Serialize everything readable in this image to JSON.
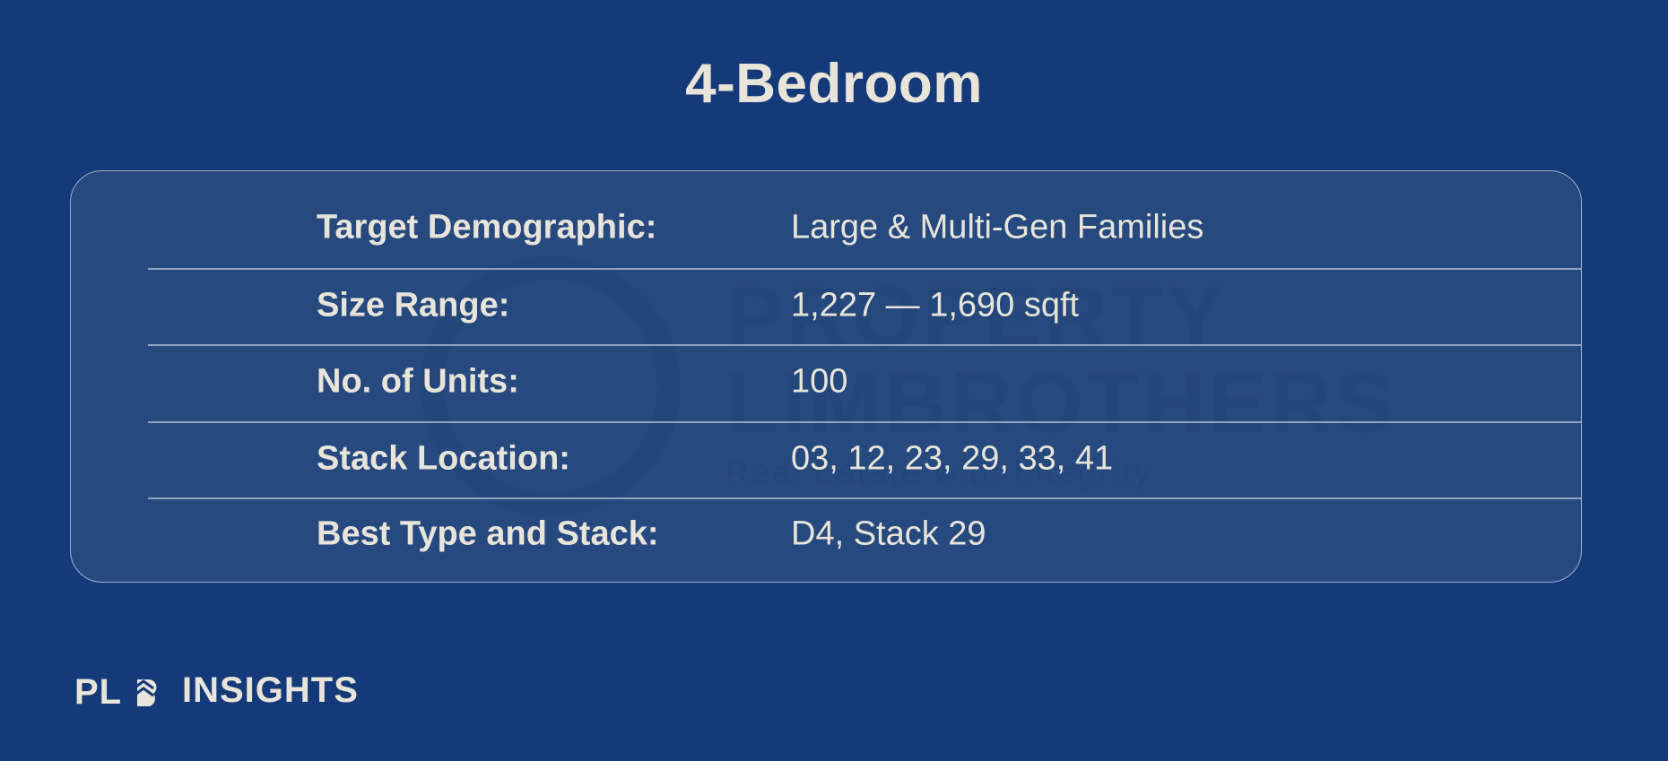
{
  "title": "4-Bedroom",
  "rows": [
    {
      "label": "Target Demographic:",
      "value": "Large & Multi-Gen Families"
    },
    {
      "label": "Size Range:",
      "value": "1,227 — 1,690 sqft"
    },
    {
      "label": "No. of Units:",
      "value": "100"
    },
    {
      "label": "Stack Location:",
      "value": "03, 12, 23, 29, 33, 41"
    },
    {
      "label": "Best Type and Stack:",
      "value": "D4, Stack 29"
    }
  ],
  "watermark": {
    "line1": "PROPERTY",
    "line2": "LIMBROTHERS",
    "line3": "Real Estate with Integrity"
  },
  "logo": {
    "mark": "PLB",
    "text": "INSIGHTS"
  },
  "colors": {
    "background": "#143a7a",
    "card": "#26497f",
    "text": "#e9e4d9"
  }
}
